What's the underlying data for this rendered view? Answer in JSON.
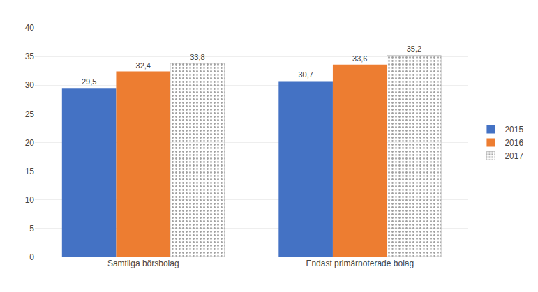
{
  "chart_data": {
    "type": "bar",
    "categories": [
      "Samtliga börsbolag",
      "Endast primärnoterade bolag"
    ],
    "series": [
      {
        "name": "2015",
        "color": "#4472C4",
        "values": [
          29.5,
          30.7
        ],
        "value_labels": [
          "29,5",
          "30,7"
        ]
      },
      {
        "name": "2016",
        "color": "#ED7D31",
        "values": [
          32.4,
          33.6
        ],
        "value_labels": [
          "32,4",
          "33,6"
        ]
      },
      {
        "name": "2017",
        "color": "#D9D9D9",
        "marker": "dots",
        "values": [
          33.8,
          35.2
        ],
        "value_labels": [
          "33,8",
          "35,2"
        ]
      }
    ],
    "ylim": [
      0,
      40
    ],
    "yticks": [
      0,
      5,
      10,
      15,
      20,
      25,
      30,
      35,
      40
    ],
    "grid": true,
    "legend": "right",
    "data_labels": true
  }
}
